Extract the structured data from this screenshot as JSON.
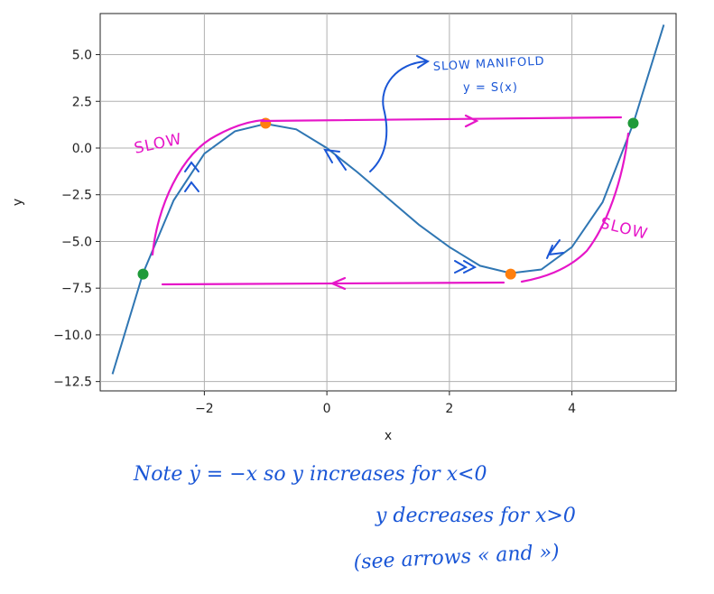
{
  "chart_data": {
    "type": "line",
    "xlabel": "x",
    "ylabel": "y",
    "xlim": [
      -3.7,
      5.7
    ],
    "ylim": [
      -13.0,
      7.2
    ],
    "xticks": [
      -2,
      0,
      2,
      4
    ],
    "yticks": [
      -12.5,
      -10.0,
      -7.5,
      -5.0,
      -2.5,
      0.0,
      2.5,
      5.0
    ],
    "grid": true,
    "series": [
      {
        "x": [
          -3.5,
          -3.0,
          -2.5,
          -2.0,
          -1.5,
          -1.0,
          -0.5,
          0.0,
          0.5,
          1.0,
          1.5,
          2.0,
          2.5,
          3.0,
          3.5,
          4.0,
          4.5,
          5.0,
          5.5
        ],
        "y": [
          -12.1,
          -6.7,
          -2.8,
          -0.3,
          0.9,
          1.3,
          1.0,
          0.0,
          -1.3,
          -2.7,
          -4.1,
          -5.3,
          -6.3,
          -6.7,
          -6.5,
          -5.3,
          -2.9,
          1.3,
          6.6
        ],
        "color": "#2f76b3"
      }
    ],
    "points": [
      {
        "x": -1.0,
        "y": 1.33,
        "color": "#ff7f0e"
      },
      {
        "x": 3.0,
        "y": -6.75,
        "color": "#ff7f0e"
      },
      {
        "x": -3.0,
        "y": -6.75,
        "color": "#1f9a3a"
      },
      {
        "x": 5.0,
        "y": 1.33,
        "color": "#1f9a3a"
      }
    ]
  },
  "annotations": {
    "slow_left": "SLOW",
    "slow_right": "SLOW",
    "manifold_line1": "SLOW MANIFOLD",
    "manifold_line2": "y = S(x)",
    "note_line1": "Note  ẏ = −x  so   y  increases  for  x<0",
    "note_line2": "y  decreases  for  x>0",
    "note_line3": "(see  arrows  «  and  »)"
  },
  "colors": {
    "curve": "#2f76b3",
    "annotation_pink": "#e616c8",
    "annotation_blue": "#1a56d6",
    "grid": "#b0b0b0"
  }
}
